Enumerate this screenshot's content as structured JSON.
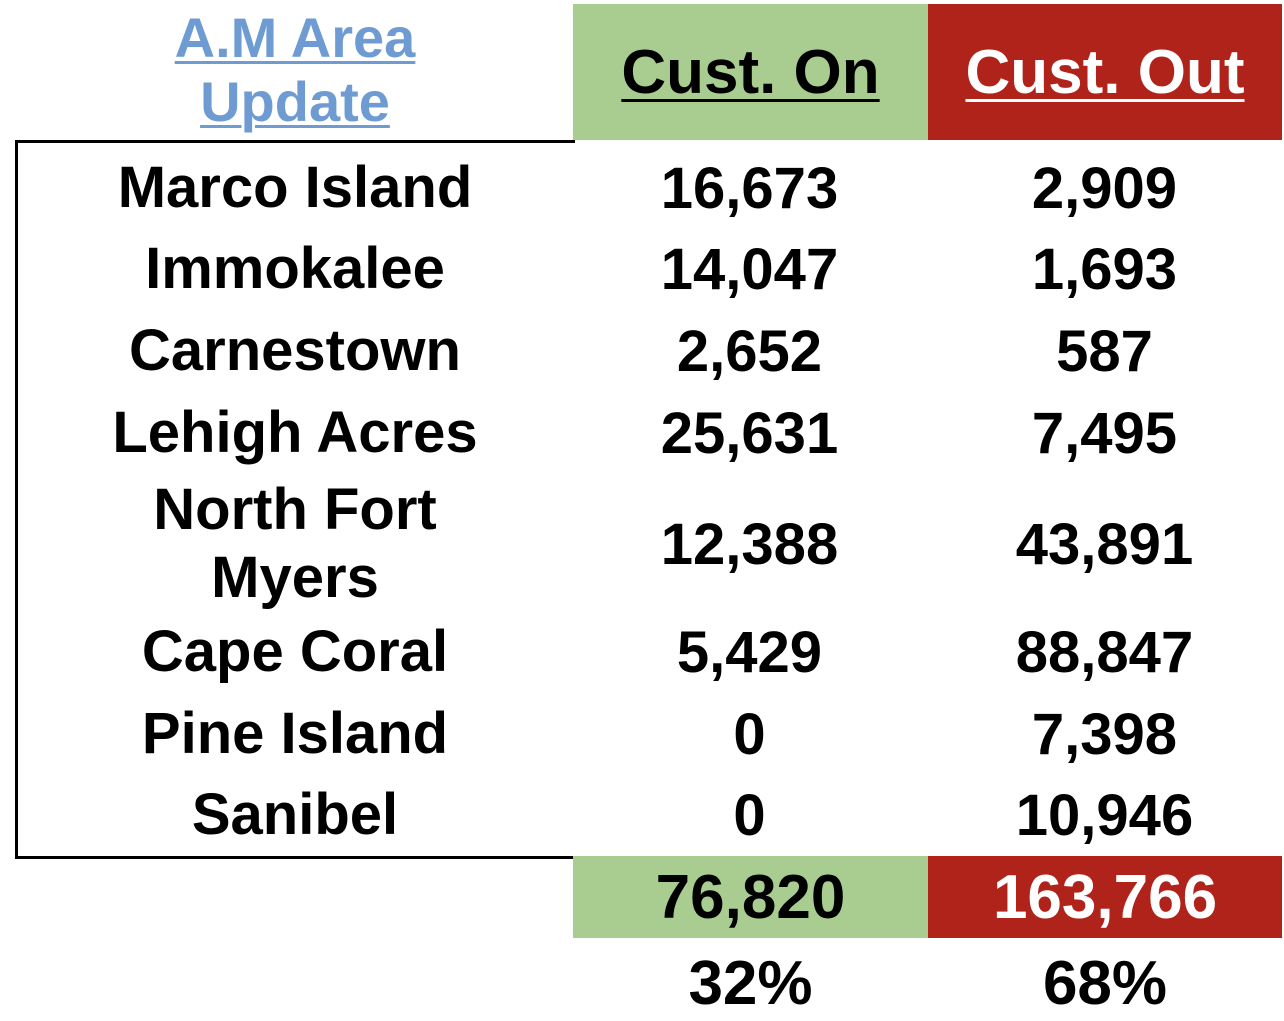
{
  "title": {
    "line1": "A.M Area",
    "line2": "Update"
  },
  "headers": {
    "on": "Cust. On",
    "out": "Cust. Out"
  },
  "rows": [
    {
      "name": "Marco Island",
      "on": "16,673",
      "out": "2,909"
    },
    {
      "name": "Immokalee",
      "on": "14,047",
      "out": "1,693"
    },
    {
      "name": "Carnestown",
      "on": "2,652",
      "out": "587"
    },
    {
      "name": "Lehigh Acres",
      "on": "25,631",
      "out": "7,495"
    },
    {
      "name": "North Fort Myers",
      "on": "12,388",
      "out": "43,891"
    },
    {
      "name": "Cape Coral",
      "on": "5,429",
      "out": "88,847"
    },
    {
      "name": "Pine Island",
      "on": "0",
      "out": "7,398"
    },
    {
      "name": "Sanibel",
      "on": "0",
      "out": "10,946"
    }
  ],
  "totals": {
    "on": "76,820",
    "out": "163,766"
  },
  "percent": {
    "on": "32%",
    "out": "68%"
  },
  "colors": {
    "title": "#6f9bd3",
    "on_fill": "#a9cd90",
    "out_fill": "#b0231a"
  }
}
